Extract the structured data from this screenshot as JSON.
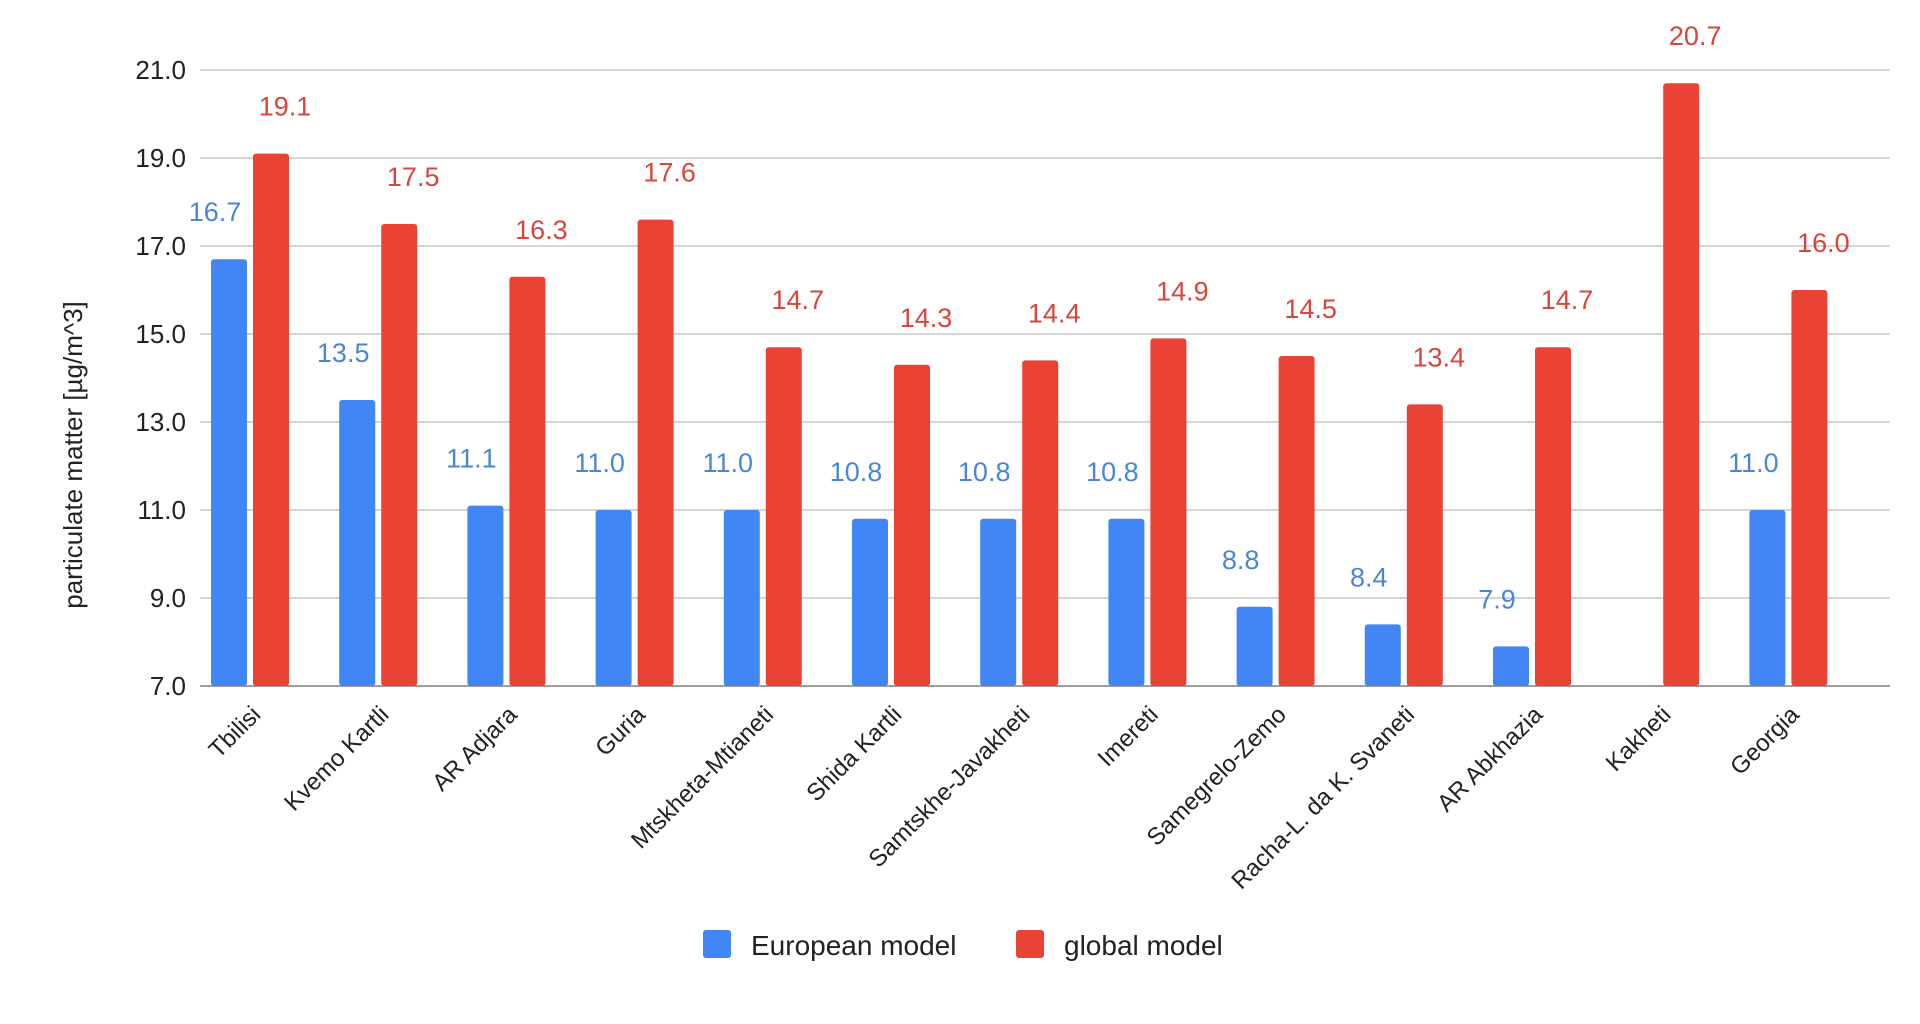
{
  "chart_data": {
    "type": "bar",
    "title": "",
    "xlabel": "",
    "ylabel": "particulate matter [µg/m^3]",
    "ylim": [
      7.0,
      21.0
    ],
    "yticks": [
      "7.0",
      "9.0",
      "11.0",
      "13.0",
      "15.0",
      "17.0",
      "19.0",
      "21.0"
    ],
    "grid": true,
    "legend_position": "bottom",
    "categories": [
      "Tbilisi",
      "Kvemo Kartli",
      "AR Adjara",
      "Guria",
      "Mtskheta-Mtianeti",
      "Shida Kartli",
      "Samtskhe-Javakheti",
      "Imereti",
      "Samegrelo-Zemo",
      "Racha-L. da K. Svaneti",
      "AR Abkhazia",
      "Kakheti",
      "Georgia"
    ],
    "series": [
      {
        "name": "European model",
        "color": "#4285f4",
        "label_color": "#4a86d8",
        "values": [
          16.7,
          13.5,
          11.1,
          11.0,
          11.0,
          10.8,
          10.8,
          10.8,
          8.8,
          8.4,
          7.9,
          null,
          11.0
        ],
        "labels": [
          "16.7",
          "13.5",
          "11.1",
          "11.0",
          "11.0",
          "10.8",
          "10.8",
          "10.8",
          "8.8",
          "8.4",
          "7.9",
          "",
          "11.0"
        ]
      },
      {
        "name": "global model",
        "color": "#ea4335",
        "label_color": "#d9453a",
        "values": [
          19.1,
          17.5,
          16.3,
          17.6,
          14.7,
          14.3,
          14.4,
          14.9,
          14.5,
          13.4,
          14.7,
          20.7,
          16.0
        ],
        "labels": [
          "19.1",
          "17.5",
          "16.3",
          "17.6",
          "14.7",
          "14.3",
          "14.4",
          "14.9",
          "14.5",
          "13.4",
          "14.7",
          "20.7",
          "16.0"
        ]
      }
    ]
  }
}
